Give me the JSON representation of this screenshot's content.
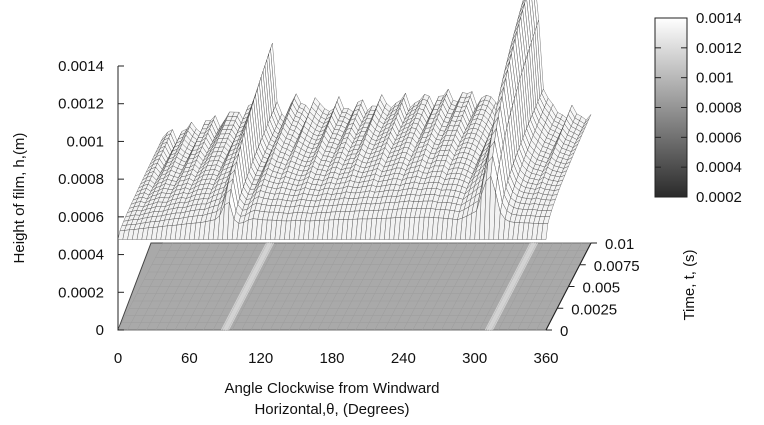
{
  "chart_data": {
    "type": "surface",
    "x_axis": {
      "label_line1": "Angle Clockwise from Windward",
      "label_line2": "Horizontal,θ, (Degrees)",
      "range": [
        0,
        360
      ],
      "ticks": [
        "0",
        "60",
        "120",
        "180",
        "240",
        "300",
        "360"
      ]
    },
    "y_axis": {
      "label": "Time, t, (s)",
      "range": [
        0,
        0.01
      ],
      "ticks": [
        "0",
        "0.0025",
        "0.005",
        "0.0075",
        "0.01"
      ]
    },
    "z_axis": {
      "label": "Height of film, h,(m)",
      "range": [
        0,
        0.0014
      ],
      "ticks": [
        "0",
        "0.0002",
        "0.0004",
        "0.0006",
        "0.0008",
        "0.001",
        "0.0012",
        "0.0014"
      ]
    },
    "colorbar": {
      "range": [
        0.0002,
        0.0014
      ],
      "ticks": [
        "0.0014",
        "0.0012",
        "0.001",
        "0.0008",
        "0.0006",
        "0.0004",
        "0.0002"
      ],
      "colors": [
        "#ffffff",
        "#2a2a2a"
      ]
    },
    "surface_profile_at_max_time": {
      "theta": [
        0,
        20,
        40,
        60,
        70,
        80,
        85,
        88,
        90,
        92,
        95,
        100,
        105,
        110,
        120,
        130,
        140,
        150,
        160,
        180,
        200,
        220,
        240,
        260,
        275,
        285,
        292,
        296,
        300,
        304,
        308,
        312,
        316,
        320,
        325,
        330,
        340,
        350,
        360
      ],
      "h": [
        0.00056,
        0.0006,
        0.00064,
        0.00068,
        0.0007,
        0.00074,
        0.00082,
        0.00098,
        0.00124,
        0.00102,
        0.00076,
        0.00068,
        0.0007,
        0.00076,
        0.00074,
        0.00073,
        0.00072,
        0.00073,
        0.00072,
        0.00074,
        0.00075,
        0.00076,
        0.00078,
        0.00078,
        0.00076,
        0.00074,
        0.0008,
        0.00084,
        0.00088,
        0.00114,
        0.00136,
        0.00144,
        0.00118,
        0.00086,
        0.00072,
        0.0007,
        0.00069,
        0.00068,
        0.00068
      ]
    },
    "base_film_at_initial_time": 0.00048
  }
}
